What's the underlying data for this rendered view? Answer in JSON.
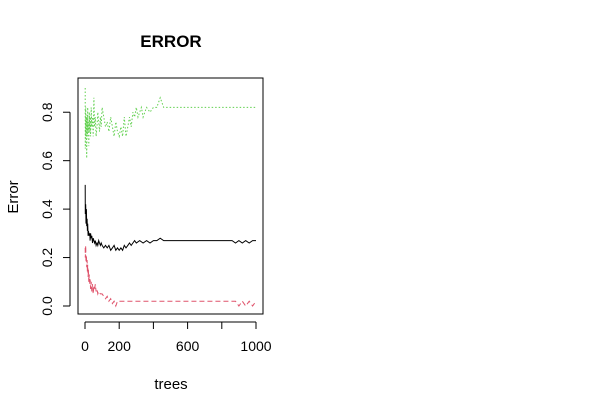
{
  "chart_data": {
    "type": "line",
    "title": "ERROR",
    "xlabel": "trees",
    "ylabel": "Error",
    "xlim": [
      0,
      1000
    ],
    "ylim": [
      0.0,
      0.9
    ],
    "x_ticks": [
      0,
      200,
      600,
      1000
    ],
    "x_tick_labels": [
      "0",
      "200",
      "600",
      "1000"
    ],
    "x_minor_ticks": [
      400,
      800
    ],
    "y_ticks": [
      0.0,
      0.2,
      0.4,
      0.6,
      0.8
    ],
    "y_tick_labels": [
      "0.0",
      "0.2",
      "0.4",
      "0.6",
      "0.8"
    ],
    "grid": false,
    "legend": "none",
    "series": [
      {
        "color": "#000000",
        "dash": "solid",
        "x": [
          1,
          2,
          4,
          6,
          8,
          10,
          12,
          14,
          16,
          18,
          20,
          22,
          25,
          28,
          30,
          33,
          36,
          40,
          44,
          48,
          52,
          56,
          60,
          65,
          70,
          75,
          80,
          85,
          90,
          95,
          100,
          110,
          120,
          130,
          140,
          150,
          160,
          170,
          180,
          190,
          200,
          210,
          220,
          230,
          240,
          250,
          260,
          270,
          280,
          290,
          300,
          320,
          340,
          360,
          380,
          400,
          420,
          440,
          460,
          500,
          600,
          700,
          800,
          860,
          880,
          900,
          920,
          940,
          960,
          980,
          1000
        ],
        "y": [
          0.5,
          0.38,
          0.42,
          0.34,
          0.4,
          0.33,
          0.36,
          0.31,
          0.34,
          0.29,
          0.31,
          0.3,
          0.29,
          0.3,
          0.27,
          0.3,
          0.28,
          0.29,
          0.26,
          0.28,
          0.27,
          0.26,
          0.27,
          0.25,
          0.26,
          0.25,
          0.27,
          0.26,
          0.25,
          0.26,
          0.25,
          0.24,
          0.25,
          0.24,
          0.25,
          0.23,
          0.24,
          0.25,
          0.23,
          0.24,
          0.23,
          0.24,
          0.23,
          0.25,
          0.24,
          0.25,
          0.26,
          0.25,
          0.26,
          0.27,
          0.26,
          0.27,
          0.26,
          0.27,
          0.26,
          0.27,
          0.27,
          0.28,
          0.27,
          0.27,
          0.27,
          0.27,
          0.27,
          0.27,
          0.26,
          0.27,
          0.26,
          0.27,
          0.26,
          0.27,
          0.27
        ]
      },
      {
        "color": "#DF536B",
        "dash": "dashed",
        "x": [
          1,
          2,
          4,
          6,
          8,
          10,
          12,
          14,
          16,
          18,
          20,
          22,
          25,
          28,
          30,
          33,
          36,
          40,
          44,
          48,
          52,
          56,
          60,
          65,
          70,
          75,
          80,
          90,
          100,
          110,
          120,
          130,
          140,
          150,
          160,
          170,
          180,
          190,
          200,
          220,
          300,
          400,
          500,
          600,
          700,
          800,
          880,
          900,
          920,
          940,
          960,
          980,
          1000
        ],
        "y": [
          0.24,
          0.2,
          0.25,
          0.18,
          0.21,
          0.16,
          0.19,
          0.14,
          0.17,
          0.12,
          0.15,
          0.1,
          0.13,
          0.09,
          0.11,
          0.07,
          0.1,
          0.06,
          0.09,
          0.05,
          0.08,
          0.07,
          0.09,
          0.06,
          0.07,
          0.05,
          0.06,
          0.05,
          0.05,
          0.04,
          0.03,
          0.04,
          0.02,
          0.03,
          0.01,
          0.02,
          0.0,
          0.02,
          0.02,
          0.02,
          0.02,
          0.02,
          0.02,
          0.02,
          0.02,
          0.02,
          0.02,
          0.0,
          0.02,
          0.0,
          0.02,
          0.0,
          0.02
        ]
      },
      {
        "color": "#61D04F",
        "dash": "dotted",
        "x": [
          1,
          2,
          4,
          6,
          8,
          10,
          12,
          14,
          16,
          18,
          20,
          22,
          25,
          28,
          30,
          33,
          36,
          40,
          44,
          48,
          52,
          56,
          60,
          65,
          70,
          75,
          80,
          85,
          90,
          95,
          100,
          110,
          120,
          130,
          140,
          150,
          160,
          170,
          180,
          190,
          200,
          210,
          220,
          230,
          240,
          250,
          260,
          270,
          280,
          290,
          300,
          310,
          320,
          330,
          340,
          350,
          360,
          380,
          400,
          420,
          440,
          460,
          500,
          600,
          700,
          800,
          900,
          1000
        ],
        "y": [
          0.9,
          0.65,
          0.82,
          0.7,
          0.78,
          0.61,
          0.79,
          0.7,
          0.82,
          0.72,
          0.76,
          0.66,
          0.8,
          0.72,
          0.78,
          0.7,
          0.82,
          0.74,
          0.78,
          0.7,
          0.86,
          0.74,
          0.78,
          0.7,
          0.74,
          0.8,
          0.76,
          0.72,
          0.78,
          0.74,
          0.82,
          0.78,
          0.74,
          0.76,
          0.72,
          0.78,
          0.74,
          0.7,
          0.76,
          0.72,
          0.7,
          0.74,
          0.7,
          0.78,
          0.7,
          0.74,
          0.78,
          0.74,
          0.8,
          0.78,
          0.82,
          0.78,
          0.8,
          0.82,
          0.78,
          0.8,
          0.82,
          0.8,
          0.82,
          0.82,
          0.86,
          0.82,
          0.82,
          0.82,
          0.82,
          0.82,
          0.82,
          0.82
        ]
      }
    ]
  }
}
